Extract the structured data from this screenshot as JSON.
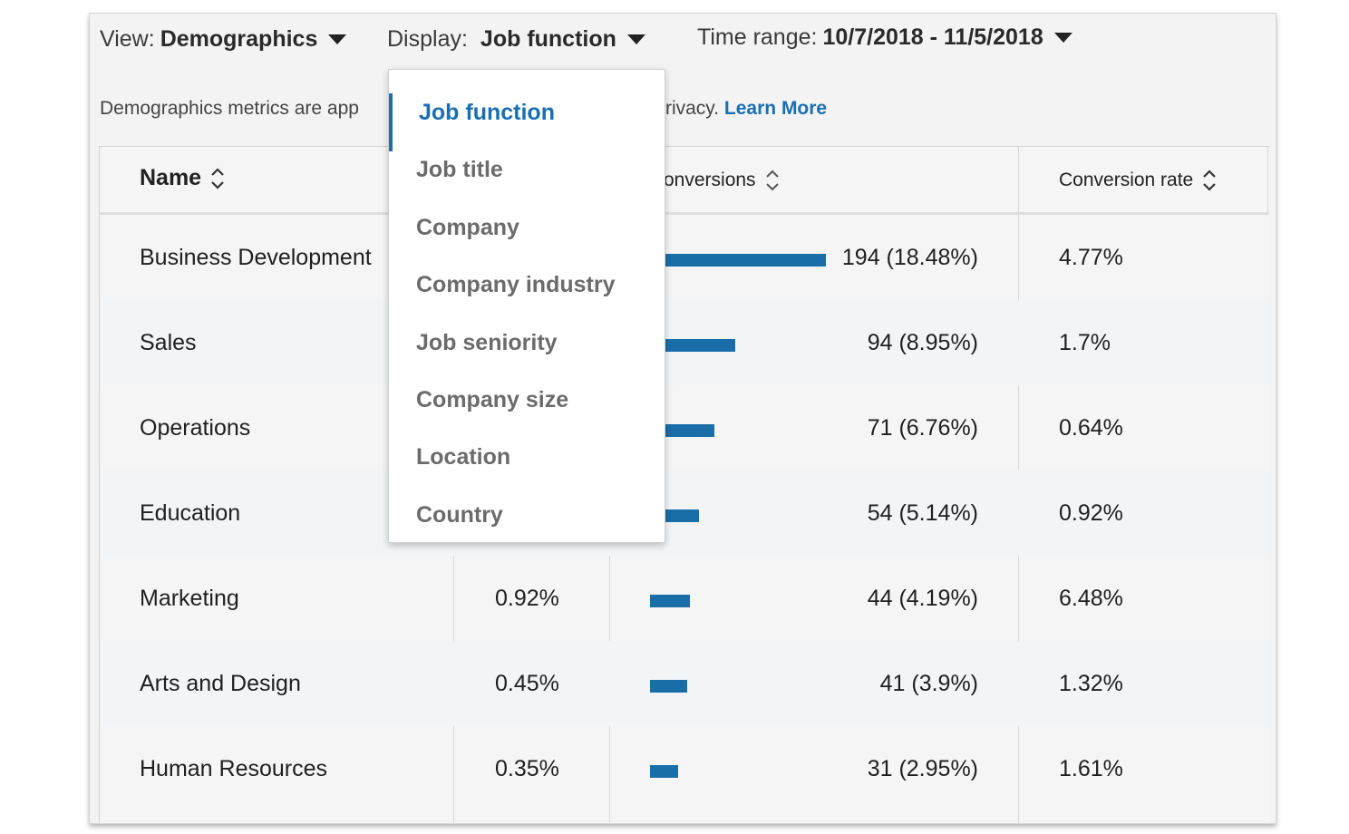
{
  "toolbar": {
    "view_label": "View:",
    "view_value": "Demographics",
    "display_label": "Display:",
    "display_value": "Job function",
    "time_label": "Time range:",
    "time_value": "10/7/2018 - 11/5/2018"
  },
  "info": {
    "text_start": "Demographics metrics are app",
    "text_end": "rivacy.",
    "link": "Learn More"
  },
  "table": {
    "headers": {
      "name": "Name",
      "conversions": "onversions",
      "conversion_rate": "Conversion rate"
    },
    "rows": [
      {
        "name": "Business Development",
        "rate": "",
        "conversions": "194 (18.48%)",
        "conversions_value": 194,
        "conversion_rate": "4.77%"
      },
      {
        "name": "Sales",
        "rate": "",
        "conversions": "94 (8.95%)",
        "conversions_value": 94,
        "conversion_rate": "1.7%"
      },
      {
        "name": "Operations",
        "rate": "",
        "conversions": "71 (6.76%)",
        "conversions_value": 71,
        "conversion_rate": "0.64%"
      },
      {
        "name": "Education",
        "rate": "",
        "conversions": "54 (5.14%)",
        "conversions_value": 54,
        "conversion_rate": "0.92%"
      },
      {
        "name": "Marketing",
        "rate": "0.92%",
        "conversions": "44 (4.19%)",
        "conversions_value": 44,
        "conversion_rate": "6.48%"
      },
      {
        "name": "Arts and Design",
        "rate": "0.45%",
        "conversions": "41 (3.9%)",
        "conversions_value": 41,
        "conversion_rate": "1.32%"
      },
      {
        "name": "Human Resources",
        "rate": "0.35%",
        "conversions": "31 (2.95%)",
        "conversions_value": 31,
        "conversion_rate": "1.61%"
      }
    ]
  },
  "dropdown": {
    "items": [
      "Job function",
      "Job title",
      "Company",
      "Company industry",
      "Job seniority",
      "Company size",
      "Location",
      "Country"
    ],
    "selected": "Job function"
  },
  "colors": {
    "accent": "#1a6fb0",
    "bar": "#1a6ea8",
    "panel_bg": "#f3f3f3"
  },
  "icons": {
    "caret": "caret-down-icon",
    "sort": "sort-icon"
  }
}
